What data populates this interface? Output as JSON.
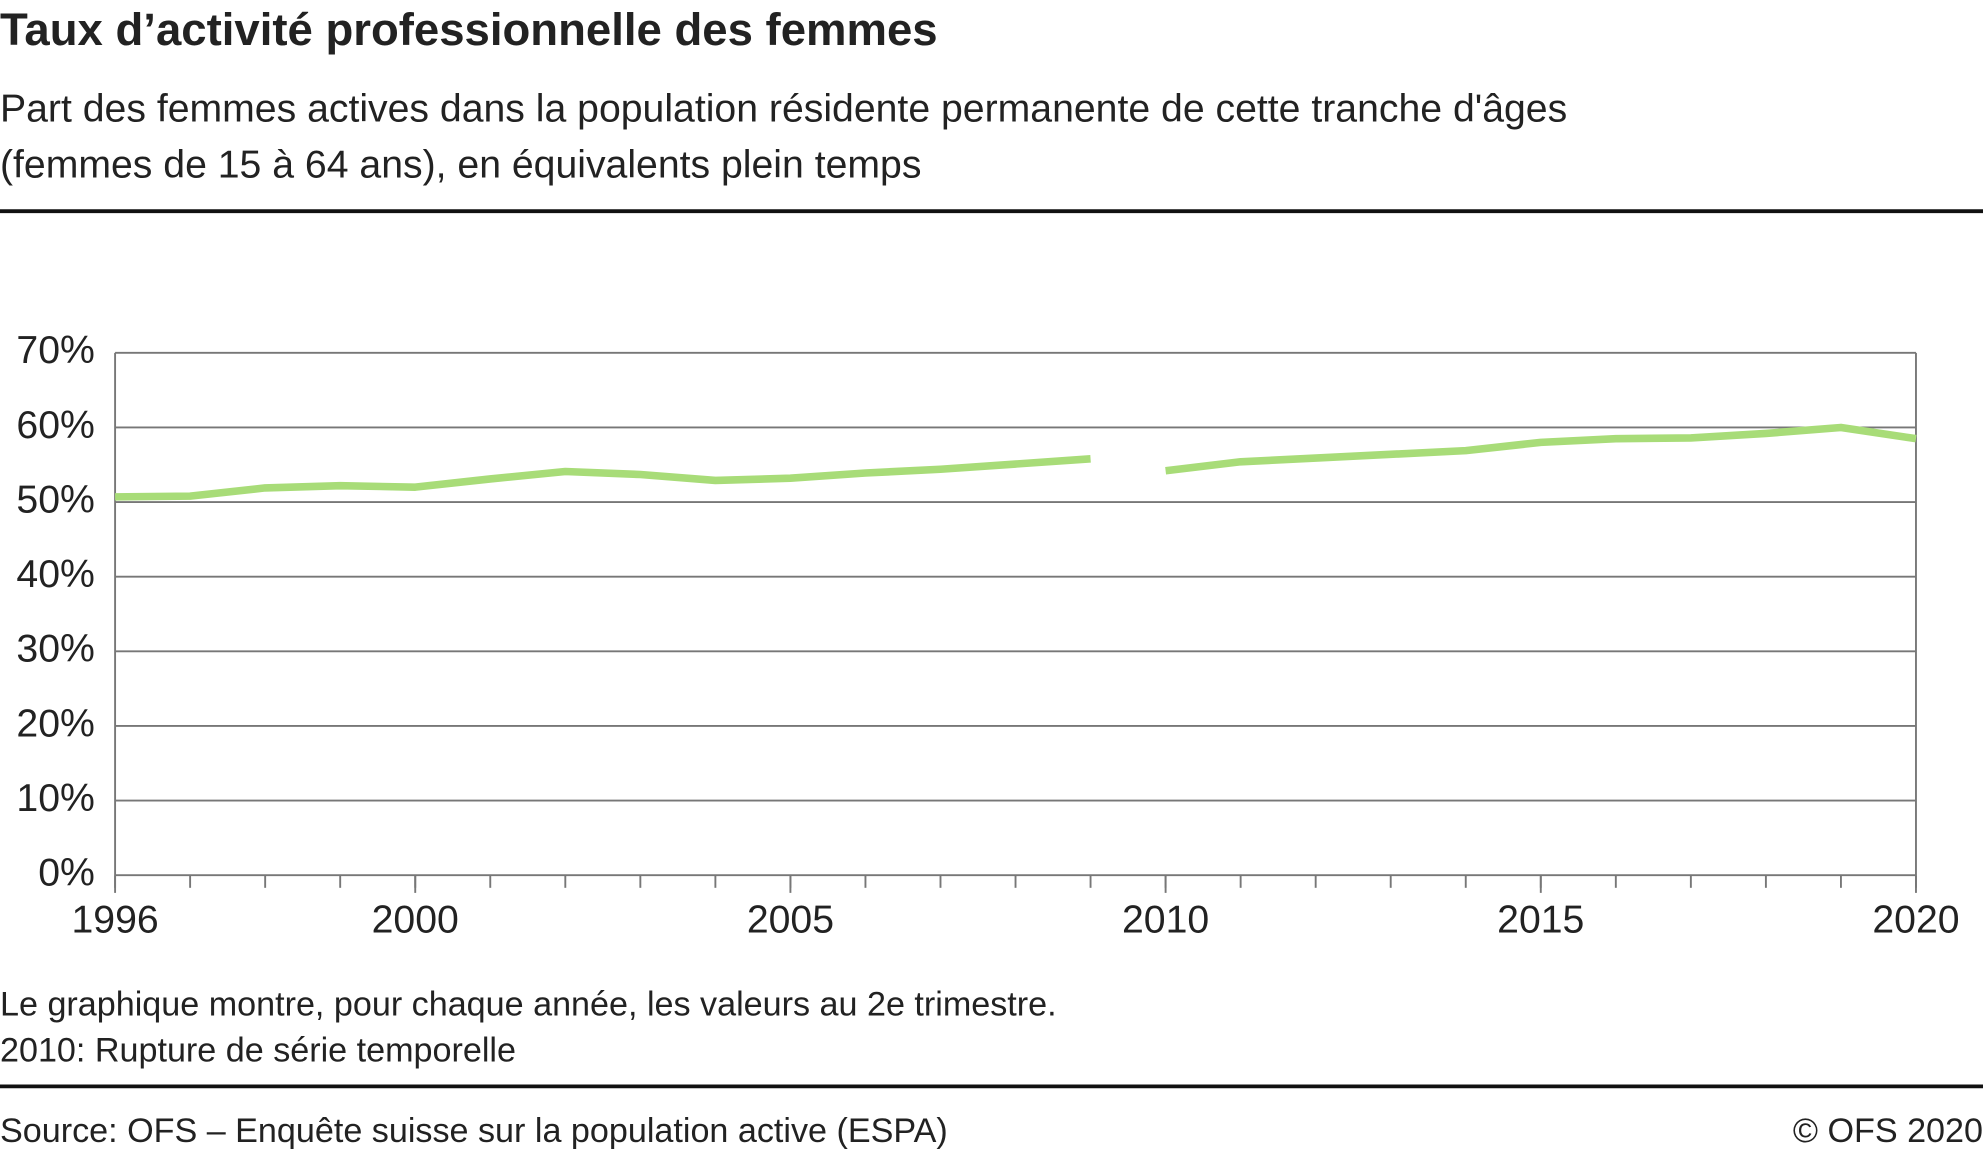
{
  "chart_data": {
    "type": "line",
    "title": "Taux d’activité professionnelle des femmes",
    "subtitle": [
      "Part des femmes actives dans la population résidente permanente de cette tranche d'âges",
      "(femmes  de 15 à 64 ans), en équivalents plein temps"
    ],
    "series": [
      {
        "color": "#a8dc78",
        "x": [
          1996,
          1997,
          1998,
          1999,
          2000,
          2001,
          2002,
          2003,
          2004,
          2005,
          2006,
          2007,
          2008,
          2009
        ],
        "values": [
          50.7,
          50.8,
          51.9,
          52.2,
          52.0,
          53.1,
          54.1,
          53.7,
          52.9,
          53.2,
          53.9,
          54.4,
          55.1,
          55.8
        ]
      },
      {
        "color": "#a8dc78",
        "x": [
          2010,
          2011,
          2012,
          2013,
          2014,
          2015,
          2016,
          2017,
          2018,
          2019,
          2020
        ],
        "values": [
          54.2,
          55.4,
          55.9,
          56.4,
          56.9,
          58.0,
          58.5,
          58.6,
          59.2,
          60.0,
          58.5
        ]
      }
    ],
    "xlim": [
      1996,
      2020
    ],
    "xticks": [
      1996,
      2000,
      2005,
      2010,
      2015,
      2020
    ],
    "ylim": [
      0,
      70
    ],
    "yticks": [
      {
        "value": 0,
        "label": "0%"
      },
      {
        "value": 10,
        "label": "10%"
      },
      {
        "value": 20,
        "label": "20%"
      },
      {
        "value": 30,
        "label": "30%"
      },
      {
        "value": 40,
        "label": "40%"
      },
      {
        "value": 50,
        "label": "50%"
      },
      {
        "value": 60,
        "label": "60%"
      },
      {
        "value": 70,
        "label": "70%"
      }
    ],
    "grid": true,
    "notes": [
      "Le graphique montre, pour chaque année, les valeurs au 2e trimestre.",
      "2010: Rupture de série temporelle"
    ],
    "source": "Source: OFS – Enquête suisse sur la population active (ESPA)",
    "copyright": "© OFS 2020"
  }
}
